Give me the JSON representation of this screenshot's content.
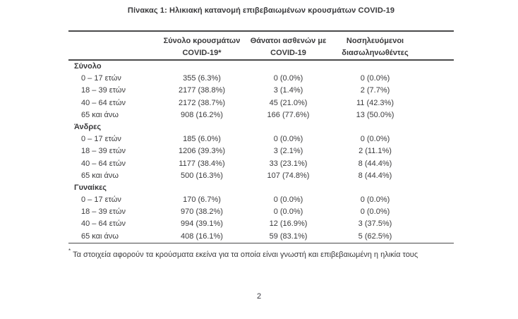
{
  "colors": {
    "ink": "#3a3a3c",
    "rule": "#4a4a4b"
  },
  "page": {
    "title": "Πίνακας 1: Ηλικιακή κατανομή επιβεβαιωμένων κρουσμάτων COVID-19",
    "footnote_marker": "*",
    "footnote": "Τα στοιχεία αφορούν τα κρούσματα εκείνα για τα οποία είναι γνωστή και επιβεβαιωμένη η ηλικία τους",
    "page_number": "2"
  },
  "table": {
    "headers": {
      "cases": [
        "Σύνολο κρουσμάτων",
        "COVID-19*"
      ],
      "deaths": [
        "Θάνατοι ασθενών με",
        "COVID-19"
      ],
      "intubated": [
        "Νοσηλευόμενοι",
        "διασωληνωθέντες"
      ]
    },
    "sections": [
      {
        "label": "Σύνολο",
        "rows": [
          {
            "label": "0 – 17 ετών",
            "cases": "355 (6.3%)",
            "deaths": "0 (0.0%)",
            "intubated": "0 (0.0%)"
          },
          {
            "label": "18 – 39 ετών",
            "cases": "2177 (38.8%)",
            "deaths": "3 (1.4%)",
            "intubated": "2 (7.7%)"
          },
          {
            "label": "40 – 64 ετών",
            "cases": "2172 (38.7%)",
            "deaths": "45 (21.0%)",
            "intubated": "11 (42.3%)"
          },
          {
            "label": "65 και άνω",
            "cases": "908 (16.2%)",
            "deaths": "166 (77.6%)",
            "intubated": "13 (50.0%)"
          }
        ]
      },
      {
        "label": "Άνδρες",
        "rows": [
          {
            "label": "0 – 17 ετών",
            "cases": "185 (6.0%)",
            "deaths": "0 (0.0%)",
            "intubated": "0 (0.0%)"
          },
          {
            "label": "18 – 39 ετών",
            "cases": "1206 (39.3%)",
            "deaths": "3 (2.1%)",
            "intubated": "2 (11.1%)"
          },
          {
            "label": "40 – 64 ετών",
            "cases": "1177 (38.4%)",
            "deaths": "33 (23.1%)",
            "intubated": "8 (44.4%)"
          },
          {
            "label": "65 και άνω",
            "cases": "500 (16.3%)",
            "deaths": "107 (74.8%)",
            "intubated": "8 (44.4%)"
          }
        ]
      },
      {
        "label": "Γυναίκες",
        "rows": [
          {
            "label": "0 – 17 ετών",
            "cases": "170 (6.7%)",
            "deaths": "0 (0.0%)",
            "intubated": "0 (0.0%)"
          },
          {
            "label": "18 – 39 ετών",
            "cases": "970 (38.2%)",
            "deaths": "0 (0.0%)",
            "intubated": "0 (0.0%)"
          },
          {
            "label": "40 – 64 ετών",
            "cases": "994 (39.1%)",
            "deaths": "12 (16.9%)",
            "intubated": "3 (37.5%)"
          },
          {
            "label": "65 και άνω",
            "cases": "408 (16.1%)",
            "deaths": "59 (83.1%)",
            "intubated": "5 (62.5%)"
          }
        ]
      }
    ]
  }
}
